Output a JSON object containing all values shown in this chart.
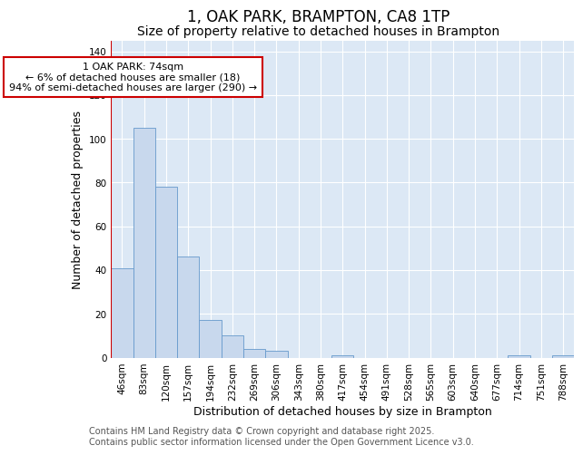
{
  "title": "1, OAK PARK, BRAMPTON, CA8 1TP",
  "subtitle": "Size of property relative to detached houses in Brampton",
  "xlabel": "Distribution of detached houses by size in Brampton",
  "ylabel": "Number of detached properties",
  "categories": [
    "46sqm",
    "83sqm",
    "120sqm",
    "157sqm",
    "194sqm",
    "232sqm",
    "269sqm",
    "306sqm",
    "343sqm",
    "380sqm",
    "417sqm",
    "454sqm",
    "491sqm",
    "528sqm",
    "565sqm",
    "603sqm",
    "640sqm",
    "677sqm",
    "714sqm",
    "751sqm",
    "788sqm"
  ],
  "values": [
    41,
    105,
    78,
    46,
    17,
    10,
    4,
    3,
    0,
    0,
    1,
    0,
    0,
    0,
    0,
    0,
    0,
    0,
    1,
    0,
    1
  ],
  "bar_color": "#c8d8ed",
  "bar_edge_color": "#6699cc",
  "annotation_line1": "1 OAK PARK: 74sqm",
  "annotation_line2": "← 6% of detached houses are smaller (18)",
  "annotation_line3": "94% of semi-detached houses are larger (290) →",
  "annotation_box_color": "#ffffff",
  "annotation_box_edge_color": "#cc0000",
  "vline_color": "#cc0000",
  "ylim": [
    0,
    145
  ],
  "yticks": [
    0,
    20,
    40,
    60,
    80,
    100,
    120,
    140
  ],
  "plot_bg_color": "#dce8f5",
  "fig_bg_color": "#ffffff",
  "grid_color": "#ffffff",
  "footer_line1": "Contains HM Land Registry data © Crown copyright and database right 2025.",
  "footer_line2": "Contains public sector information licensed under the Open Government Licence v3.0.",
  "title_fontsize": 12,
  "subtitle_fontsize": 10,
  "axis_label_fontsize": 9,
  "tick_fontsize": 7.5,
  "annotation_fontsize": 8,
  "footer_fontsize": 7
}
